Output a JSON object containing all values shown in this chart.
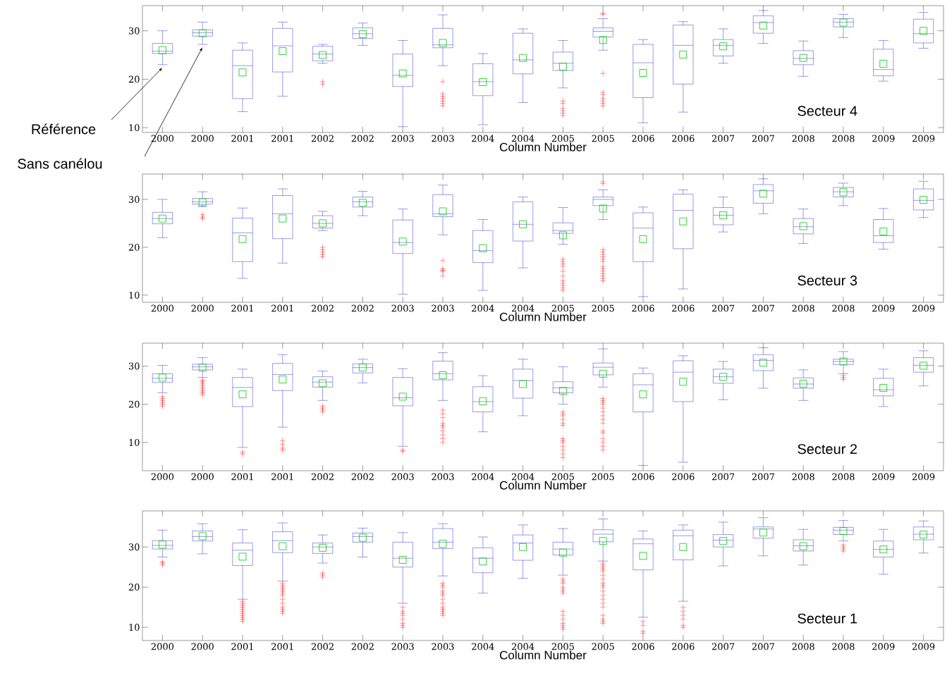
{
  "chart_data": [
    {
      "type": "box",
      "categories": [
        "2000",
        "2000",
        "2001",
        "2001",
        "2002",
        "2002",
        "2003",
        "2003",
        "2004",
        "2004",
        "2005",
        "2005",
        "2006",
        "2006",
        "2007",
        "2007",
        "2008",
        "2008",
        "2009",
        "2009"
      ],
      "xlabel": "Column Number",
      "annotations": [
        "Secteur 4",
        "Référence",
        "Sans canélou"
      ],
      "ylim": [
        9,
        35.2
      ],
      "yticks": [
        10,
        20,
        30
      ],
      "boxes": [
        {
          "low": 23,
          "q1": 25.3,
          "median": 25.8,
          "q3": 27.4,
          "high": 30,
          "mean": 26
        },
        {
          "low": 27.2,
          "q1": 28.9,
          "median": 29.6,
          "q3": 30.2,
          "high": 31.8,
          "mean": 29.5
        },
        {
          "low": 13.3,
          "q1": 16,
          "median": 22.8,
          "q3": 26,
          "high": 27.5,
          "mean": 21.4
        },
        {
          "low": 16.5,
          "q1": 21.5,
          "median": 26.9,
          "q3": 30.5,
          "high": 31.8,
          "mean": 25.8
        },
        {
          "low": 23.3,
          "q1": 23.8,
          "median": 25.2,
          "q3": 26.8,
          "high": 27.2,
          "mean": 25,
          "outliers": [
            19,
            19.5
          ]
        },
        {
          "low": 27,
          "q1": 28.4,
          "median": 29.4,
          "q3": 30.6,
          "high": 31.6,
          "mean": 29.3
        },
        {
          "low": 10.2,
          "q1": 18.5,
          "median": 20.8,
          "q3": 25.2,
          "high": 28,
          "mean": 21.2
        },
        {
          "low": 22.8,
          "q1": 26.5,
          "median": 27.1,
          "q3": 30.5,
          "high": 33.3,
          "mean": 27.5,
          "outliers": [
            19.5,
            17,
            16.5,
            16,
            15.5,
            15,
            14.5
          ]
        },
        {
          "low": 10.6,
          "q1": 16.6,
          "median": 19.5,
          "q3": 23.2,
          "high": 25.3,
          "mean": 19.4
        },
        {
          "low": 15.2,
          "q1": 21.1,
          "median": 24,
          "q3": 29.5,
          "high": 30.4,
          "mean": 24.4
        },
        {
          "low": 18.2,
          "q1": 21.8,
          "median": 23.3,
          "q3": 25.6,
          "high": 28,
          "mean": 22.6,
          "outliers": [
            15.5,
            15,
            14,
            13.5,
            13,
            12.5
          ]
        },
        {
          "low": 26,
          "q1": 28.7,
          "median": 29.9,
          "q3": 30.6,
          "high": 32.5,
          "mean": 28.1,
          "outliers": [
            33.6,
            33.4,
            21.2,
            17.3,
            16.8,
            16,
            15.5,
            15,
            14.5
          ]
        },
        {
          "low": 11,
          "q1": 16.2,
          "median": 23.4,
          "q3": 27.2,
          "high": 28.2,
          "mean": 21.3
        },
        {
          "low": 13.2,
          "q1": 19,
          "median": 27,
          "q3": 31.2,
          "high": 31.9,
          "mean": 25.1
        },
        {
          "low": 23.3,
          "q1": 24.8,
          "median": 27,
          "q3": 28.2,
          "high": 30.4,
          "mean": 26.8
        },
        {
          "low": 27.4,
          "q1": 29.5,
          "median": 31.7,
          "q3": 33.1,
          "high": 34.2,
          "mean": 31.1
        },
        {
          "low": 20.6,
          "q1": 23,
          "median": 24.3,
          "q3": 25.9,
          "high": 27.9,
          "mean": 24.4
        },
        {
          "low": 28.6,
          "q1": 30.8,
          "median": 31.8,
          "q3": 32.5,
          "high": 33.4,
          "mean": 31.7
        },
        {
          "low": 19.6,
          "q1": 20.7,
          "median": 22,
          "q3": 26.2,
          "high": 28,
          "mean": 23.2
        },
        {
          "low": 26.4,
          "q1": 27.5,
          "median": 29.4,
          "q3": 32.4,
          "high": 33.8,
          "mean": 30
        }
      ]
    },
    {
      "type": "box",
      "categories": [
        "2000",
        "2000",
        "2001",
        "2001",
        "2002",
        "2002",
        "2003",
        "2003",
        "2004",
        "2004",
        "2005",
        "2005",
        "2006",
        "2006",
        "2007",
        "2007",
        "2008",
        "2008",
        "2009",
        "2009"
      ],
      "xlabel": "Column Number",
      "annotations": [
        "Secteur 3"
      ],
      "ylim": [
        8.5,
        35.3
      ],
      "yticks": [
        10,
        20,
        30
      ],
      "boxes": [
        {
          "low": 22,
          "q1": 24.9,
          "median": 26,
          "q3": 27.3,
          "high": 30,
          "mean": 26
        },
        {
          "low": 28.5,
          "q1": 29,
          "median": 29.5,
          "q3": 30.2,
          "high": 31.6,
          "mean": 29.4,
          "outliers": [
            26.8,
            26.3,
            26
          ]
        },
        {
          "low": 13.5,
          "q1": 17,
          "median": 23,
          "q3": 26.1,
          "high": 28.2,
          "mean": 21.7
        },
        {
          "low": 16.7,
          "q1": 21.8,
          "median": 27,
          "q3": 30.8,
          "high": 32.2,
          "mean": 26
        },
        {
          "low": 23.5,
          "q1": 24,
          "median": 25,
          "q3": 26.6,
          "high": 27.5,
          "mean": 25,
          "outliers": [
            20,
            19.5,
            19,
            18.5,
            18
          ]
        },
        {
          "low": 26.6,
          "q1": 28.4,
          "median": 29.5,
          "q3": 30.5,
          "high": 31.7,
          "mean": 29.3
        },
        {
          "low": 10.2,
          "q1": 18.7,
          "median": 21,
          "q3": 25.7,
          "high": 28,
          "mean": 21.2
        },
        {
          "low": 22.6,
          "q1": 26.4,
          "median": 27,
          "q3": 31,
          "high": 33,
          "mean": 27.5,
          "outliers": [
            17.2,
            15.5,
            15.2,
            15,
            14
          ]
        },
        {
          "low": 11,
          "q1": 16.8,
          "median": 19.3,
          "q3": 23.5,
          "high": 25.8,
          "mean": 19.8
        },
        {
          "low": 15.7,
          "q1": 21.3,
          "median": 24.8,
          "q3": 29.5,
          "high": 30.5,
          "mean": 24.8
        },
        {
          "low": 20.6,
          "q1": 22.9,
          "median": 23.5,
          "q3": 25.1,
          "high": 28.3,
          "mean": 22.5,
          "outliers": [
            17.5,
            17,
            16.5,
            16,
            15,
            14,
            13,
            12.5,
            12,
            11.5,
            11
          ]
        },
        {
          "low": 25.8,
          "q1": 28.7,
          "median": 30,
          "q3": 30.5,
          "high": 32,
          "mean": 28.1,
          "outliers": [
            33.7,
            33.3,
            19.5,
            19,
            18.5,
            18,
            17.5,
            17,
            16,
            15.5,
            15,
            14.5,
            14,
            13.5,
            13
          ]
        },
        {
          "low": 9.7,
          "q1": 17,
          "median": 24,
          "q3": 27.2,
          "high": 28.4,
          "mean": 21.7
        },
        {
          "low": 11.3,
          "q1": 19.7,
          "median": 27.7,
          "q3": 31.1,
          "high": 32,
          "mean": 25.4
        },
        {
          "low": 23.2,
          "q1": 24.7,
          "median": 26.7,
          "q3": 28.3,
          "high": 30.5,
          "mean": 26.7
        },
        {
          "low": 27,
          "q1": 29.2,
          "median": 31.8,
          "q3": 33.1,
          "high": 34.3,
          "mean": 31.2
        },
        {
          "low": 20.8,
          "q1": 22.8,
          "median": 24.3,
          "q3": 26,
          "high": 28,
          "mean": 24.4
        },
        {
          "low": 28.7,
          "q1": 30.5,
          "median": 31.6,
          "q3": 32.5,
          "high": 33.4,
          "mean": 31.5
        },
        {
          "low": 19.6,
          "q1": 21,
          "median": 22.4,
          "q3": 25.8,
          "high": 28.1,
          "mean": 23.3
        },
        {
          "low": 26.2,
          "q1": 27.8,
          "median": 29.8,
          "q3": 32.2,
          "high": 33.8,
          "mean": 29.9
        }
      ]
    },
    {
      "type": "box",
      "categories": [
        "2000",
        "2000",
        "2001",
        "2001",
        "2002",
        "2002",
        "2003",
        "2003",
        "2004",
        "2004",
        "2005",
        "2005",
        "2006",
        "2006",
        "2007",
        "2007",
        "2008",
        "2008",
        "2009",
        "2009"
      ],
      "xlabel": "Column Number",
      "annotations": [
        "Secteur 2"
      ],
      "ylim": [
        2.6,
        36
      ],
      "yticks": [
        10,
        20,
        30
      ],
      "boxes": [
        {
          "low": 23,
          "q1": 25.7,
          "median": 26.8,
          "q3": 28,
          "high": 30.2,
          "mean": 27,
          "outliers": [
            22,
            21.5,
            21,
            20.5,
            20,
            19.5
          ]
        },
        {
          "low": 27,
          "q1": 29,
          "median": 29.8,
          "q3": 30.5,
          "high": 32.2,
          "mean": 29.6,
          "outliers": [
            26.3,
            26,
            25.5,
            25,
            24.5,
            24,
            23.5,
            23,
            22.5
          ]
        },
        {
          "low": 8.7,
          "q1": 19.4,
          "median": 24.4,
          "q3": 27,
          "high": 29.2,
          "mean": 22.6,
          "outliers": [
            7.5,
            7
          ]
        },
        {
          "low": 14,
          "q1": 23.6,
          "median": 27.8,
          "q3": 30.7,
          "high": 33,
          "mean": 26.5,
          "outliers": [
            10.5,
            9.5,
            8.5,
            8
          ]
        },
        {
          "low": 21,
          "q1": 24.5,
          "median": 25.8,
          "q3": 27.2,
          "high": 28.7,
          "mean": 25.5,
          "outliers": [
            19.5,
            19,
            18.5,
            18
          ]
        },
        {
          "low": 25.6,
          "q1": 28.2,
          "median": 29.6,
          "q3": 30.6,
          "high": 31.8,
          "mean": 29.6
        },
        {
          "low": 9,
          "q1": 19.6,
          "median": 21.7,
          "q3": 27,
          "high": 29.3,
          "mean": 22,
          "outliers": [
            8,
            7.7
          ]
        },
        {
          "low": 21,
          "q1": 26.4,
          "median": 28,
          "q3": 31.3,
          "high": 33.5,
          "mean": 27.6,
          "outliers": [
            18.5,
            17.5,
            16.5,
            15,
            14.5,
            14,
            13,
            12,
            11,
            10
          ]
        },
        {
          "low": 12.8,
          "q1": 18,
          "median": 20.7,
          "q3": 24.6,
          "high": 27.5,
          "mean": 20.8
        },
        {
          "low": 17,
          "q1": 21.6,
          "median": 26.2,
          "q3": 29.2,
          "high": 31.8,
          "mean": 25.3
        },
        {
          "low": 20,
          "q1": 23,
          "median": 24.3,
          "q3": 25.9,
          "high": 29.8,
          "mean": 23.5,
          "outliers": [
            18,
            17.5,
            17,
            16,
            15,
            14.5,
            11,
            10.5,
            10,
            9,
            8,
            7,
            6
          ]
        },
        {
          "low": 24.5,
          "q1": 27.7,
          "median": 29.7,
          "q3": 30.8,
          "high": 34.5,
          "mean": 28,
          "outliers": [
            21.5,
            21,
            20.5,
            20,
            19,
            18,
            17,
            16,
            15,
            13,
            12.5,
            11,
            10,
            9,
            8
          ]
        },
        {
          "low": 4,
          "q1": 18,
          "median": 25.1,
          "q3": 28,
          "high": 29.5,
          "mean": 22.6
        },
        {
          "low": 4.8,
          "q1": 20.7,
          "median": 28.4,
          "q3": 31.4,
          "high": 32.7,
          "mean": 25.9
        },
        {
          "low": 21.2,
          "q1": 25.5,
          "median": 27.2,
          "q3": 29.2,
          "high": 31.2,
          "mean": 27.2
        },
        {
          "low": 24.2,
          "q1": 28.8,
          "median": 31.5,
          "q3": 33,
          "high": 34.8,
          "mean": 30.9
        },
        {
          "low": 21,
          "q1": 24.2,
          "median": 25.3,
          "q3": 26.9,
          "high": 29,
          "mean": 25.4
        },
        {
          "low": 28,
          "q1": 30.4,
          "median": 31.2,
          "q3": 31.8,
          "high": 33.8,
          "mean": 31.2,
          "outliers": [
            27.5,
            27,
            26.5
          ]
        },
        {
          "low": 19.4,
          "q1": 22.2,
          "median": 23.8,
          "q3": 26.8,
          "high": 29.2,
          "mean": 24.3
        },
        {
          "low": 24.8,
          "q1": 28.4,
          "median": 30.2,
          "q3": 32.2,
          "high": 34,
          "mean": 30.1
        }
      ]
    },
    {
      "type": "box",
      "categories": [
        "2000",
        "2000",
        "2001",
        "2001",
        "2002",
        "2002",
        "2003",
        "2003",
        "2004",
        "2004",
        "2005",
        "2005",
        "2006",
        "2006",
        "2007",
        "2007",
        "2008",
        "2008",
        "2009",
        "2009"
      ],
      "xlabel": "Column Number",
      "annotations": [
        "Secteur 1"
      ],
      "ylim": [
        6.7,
        39
      ],
      "yticks": [
        10,
        20,
        30
      ],
      "boxes": [
        {
          "low": 27.5,
          "q1": 29.5,
          "median": 30.4,
          "q3": 31.6,
          "high": 34.2,
          "mean": 30.6,
          "outliers": [
            26.3,
            26,
            25.5
          ]
        },
        {
          "low": 28.3,
          "q1": 31.5,
          "median": 32.6,
          "q3": 34,
          "high": 35.8,
          "mean": 32.7
        },
        {
          "low": 17,
          "q1": 25.4,
          "median": 29.2,
          "q3": 31,
          "high": 34.3,
          "mean": 27.6,
          "outliers": [
            16.5,
            16,
            15.5,
            15,
            14.5,
            14,
            13.5,
            13,
            12.5,
            12,
            11.5
          ]
        },
        {
          "low": 21.5,
          "q1": 28.6,
          "median": 31.6,
          "q3": 33.8,
          "high": 36,
          "mean": 30.2,
          "outliers": [
            21,
            20.5,
            20,
            19.5,
            19,
            18.5,
            18,
            17,
            16,
            15,
            14.5,
            14,
            13.5
          ]
        },
        {
          "low": 26,
          "q1": 28.4,
          "median": 30,
          "q3": 31,
          "high": 33,
          "mean": 29.8,
          "outliers": [
            23.5,
            23,
            22.5
          ]
        },
        {
          "low": 27.5,
          "q1": 31.2,
          "median": 32.6,
          "q3": 33.5,
          "high": 34.7,
          "mean": 32.3
        },
        {
          "low": 16,
          "q1": 25,
          "median": 27.2,
          "q3": 31.2,
          "high": 33.6,
          "mean": 26.8,
          "outliers": [
            15,
            14,
            13.5,
            13,
            12,
            11,
            10.5,
            10
          ]
        },
        {
          "low": 22.8,
          "q1": 29.6,
          "median": 31.2,
          "q3": 34.6,
          "high": 35.8,
          "mean": 30.8,
          "outliers": [
            21,
            20.5,
            20,
            19,
            18.5,
            18,
            17,
            16,
            15,
            14.5,
            14,
            13.5,
            13
          ]
        },
        {
          "low": 18.5,
          "q1": 23.6,
          "median": 27.2,
          "q3": 29.8,
          "high": 32.5,
          "mean": 26.4
        },
        {
          "low": 22.2,
          "q1": 26.7,
          "median": 31,
          "q3": 33,
          "high": 35.5,
          "mean": 30
        },
        {
          "low": 23,
          "q1": 28,
          "median": 29.5,
          "q3": 31.2,
          "high": 34.6,
          "mean": 28.6,
          "outliers": [
            22,
            21.5,
            21,
            20,
            19.5,
            19,
            18.5,
            14,
            13,
            12,
            11,
            10.5,
            10,
            9.5
          ]
        },
        {
          "low": 26.5,
          "q1": 31.3,
          "median": 33.2,
          "q3": 34.3,
          "high": 37,
          "mean": 31.5,
          "outliers": [
            26,
            25.5,
            25,
            24.5,
            24,
            23,
            22,
            21,
            20.5,
            20,
            19,
            18,
            17,
            16,
            15,
            13,
            12,
            11.5,
            11
          ]
        },
        {
          "low": 12.5,
          "q1": 24.3,
          "median": 30.8,
          "q3": 32,
          "high": 34,
          "mean": 27.8,
          "outliers": [
            11.5,
            10.5,
            9,
            8.5
          ]
        },
        {
          "low": 16.5,
          "q1": 26.8,
          "median": 32.8,
          "q3": 34.2,
          "high": 35.5,
          "mean": 30,
          "outliers": [
            15,
            14,
            13,
            12,
            10.5,
            10
          ]
        },
        {
          "low": 25.3,
          "q1": 30,
          "median": 31.7,
          "q3": 33.1,
          "high": 36.2,
          "mean": 31.5
        },
        {
          "low": 27.8,
          "q1": 32.2,
          "median": 34.5,
          "q3": 35,
          "high": 37.3,
          "mean": 33.6
        },
        {
          "low": 25.5,
          "q1": 29,
          "median": 30.3,
          "q3": 31.8,
          "high": 34.4,
          "mean": 30.2
        },
        {
          "low": 31.5,
          "q1": 33.1,
          "median": 34.2,
          "q3": 34.9,
          "high": 36.6,
          "mean": 34,
          "outliers": [
            30.5,
            30,
            29.5,
            29
          ]
        },
        {
          "low": 23.2,
          "q1": 27.5,
          "median": 29.4,
          "q3": 31.5,
          "high": 34.4,
          "mean": 29.4
        },
        {
          "low": 28.5,
          "q1": 31.8,
          "median": 33.2,
          "q3": 35,
          "high": 36.5,
          "mean": 33.1
        }
      ]
    }
  ]
}
